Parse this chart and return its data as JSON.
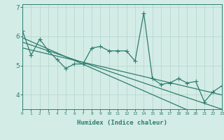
{
  "xlabel": "Humidex (Indice chaleur)",
  "bg_color": "#d4ece6",
  "line_color": "#2e7d6e",
  "grid_color": "#b8d8d0",
  "x_data": [
    0,
    1,
    2,
    3,
    4,
    5,
    6,
    7,
    8,
    9,
    10,
    11,
    12,
    13,
    14,
    15,
    16,
    17,
    18,
    19,
    20,
    21,
    22,
    23
  ],
  "y_main": [
    6.2,
    5.35,
    5.9,
    5.5,
    5.2,
    4.9,
    5.05,
    5.05,
    5.6,
    5.65,
    5.5,
    5.5,
    5.5,
    5.15,
    6.8,
    4.55,
    4.35,
    4.4,
    4.55,
    4.4,
    4.45,
    3.75,
    4.1,
    4.3
  ],
  "y_trend1": [
    5.95,
    5.82,
    5.69,
    5.56,
    5.43,
    5.3,
    5.17,
    5.04,
    4.91,
    4.78,
    4.65,
    4.52,
    4.39,
    4.26,
    4.13,
    4.0,
    3.87,
    3.74,
    3.61,
    3.48,
    3.35,
    3.22,
    3.09,
    2.96
  ],
  "y_trend2": [
    5.8,
    5.7,
    5.6,
    5.5,
    5.4,
    5.3,
    5.2,
    5.1,
    5.0,
    4.9,
    4.8,
    4.7,
    4.6,
    4.5,
    4.4,
    4.3,
    4.2,
    4.1,
    4.0,
    3.9,
    3.8,
    3.7,
    3.6,
    3.5
  ],
  "y_trend3": [
    5.6,
    5.53,
    5.46,
    5.39,
    5.32,
    5.25,
    5.18,
    5.11,
    5.04,
    4.97,
    4.9,
    4.83,
    4.76,
    4.69,
    4.62,
    4.55,
    4.48,
    4.41,
    4.34,
    4.27,
    4.2,
    4.13,
    4.06,
    3.99
  ],
  "xlim": [
    0,
    23
  ],
  "ylim": [
    3.5,
    7.1
  ],
  "yticks": [
    4,
    5,
    6,
    7
  ],
  "xticks": [
    0,
    1,
    2,
    3,
    4,
    5,
    6,
    7,
    8,
    9,
    10,
    11,
    12,
    13,
    14,
    15,
    16,
    17,
    18,
    19,
    20,
    21,
    22,
    23
  ],
  "marker": "+",
  "markersize": 4,
  "linewidth": 0.9
}
